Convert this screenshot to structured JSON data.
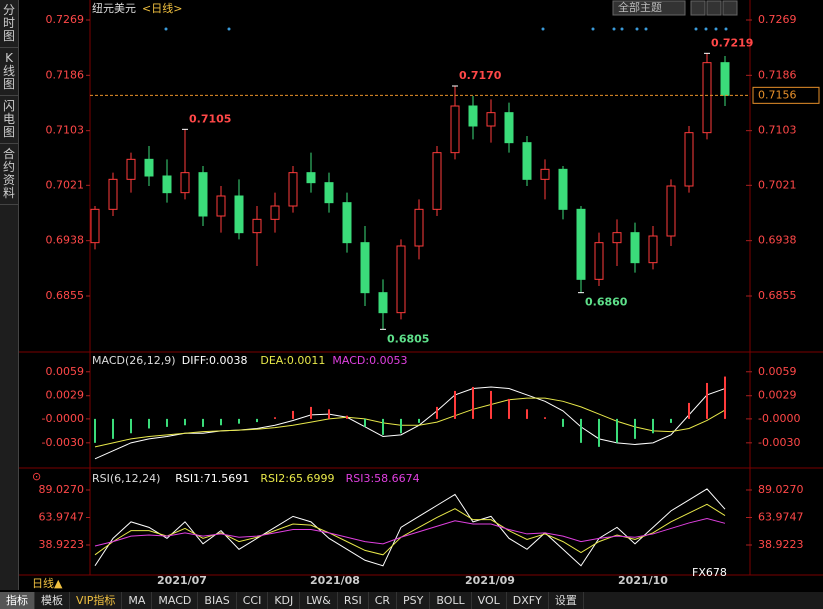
{
  "sidebar": [
    "分时图",
    "K线图",
    "闪电图",
    "合约资料"
  ],
  "header": {
    "symbol": "纽元美元",
    "period": "<日线>",
    "theme": "全部主题"
  },
  "chart_data": [
    {
      "type": "candlestick",
      "ylim": [
        0.6774,
        0.7287
      ],
      "yticks": [
        0.7269,
        0.7186,
        0.7103,
        0.7021,
        0.6938,
        0.6855
      ],
      "up_color": "#ff3b3b",
      "down_color": "#3bdc7a",
      "open": [
        0.6935,
        0.6985,
        0.703,
        0.706,
        0.7035,
        0.701,
        0.704,
        0.6975,
        0.7005,
        0.695,
        0.697,
        0.699,
        0.704,
        0.7025,
        0.6995,
        0.6935,
        0.686,
        0.683,
        0.693,
        0.6985,
        0.707,
        0.714,
        0.711,
        0.713,
        0.7085,
        0.703,
        0.7045,
        0.6985,
        0.688,
        0.6935,
        0.695,
        0.6905,
        0.6945,
        0.702,
        0.71,
        0.7205
      ],
      "high": [
        0.699,
        0.704,
        0.707,
        0.708,
        0.706,
        0.7105,
        0.705,
        0.702,
        0.703,
        0.699,
        0.701,
        0.705,
        0.707,
        0.704,
        0.701,
        0.696,
        0.688,
        0.694,
        0.7,
        0.708,
        0.717,
        0.7155,
        0.715,
        0.7145,
        0.7095,
        0.706,
        0.705,
        0.699,
        0.695,
        0.697,
        0.6965,
        0.696,
        0.703,
        0.711,
        0.7219,
        0.7215
      ],
      "low": [
        0.6925,
        0.6975,
        0.701,
        0.702,
        0.6995,
        0.7,
        0.696,
        0.695,
        0.694,
        0.69,
        0.695,
        0.698,
        0.701,
        0.698,
        0.692,
        0.684,
        0.6805,
        0.682,
        0.691,
        0.6975,
        0.706,
        0.709,
        0.7085,
        0.707,
        0.702,
        0.7,
        0.697,
        0.686,
        0.687,
        0.69,
        0.689,
        0.6895,
        0.693,
        0.701,
        0.709,
        0.714
      ],
      "close": [
        0.6985,
        0.703,
        0.706,
        0.7035,
        0.701,
        0.704,
        0.6975,
        0.7005,
        0.695,
        0.697,
        0.699,
        0.704,
        0.7025,
        0.6995,
        0.6935,
        0.686,
        0.683,
        0.693,
        0.6985,
        0.707,
        0.714,
        0.711,
        0.713,
        0.7085,
        0.703,
        0.7045,
        0.6985,
        0.688,
        0.6935,
        0.695,
        0.6905,
        0.6945,
        0.702,
        0.71,
        0.7205,
        0.7156
      ],
      "annotations": [
        {
          "value": 0.7105,
          "label": "0.7105"
        },
        {
          "value": 0.717,
          "label": "0.7170"
        },
        {
          "value": 0.7219,
          "label": "0.7219"
        },
        {
          "value": 0.6805,
          "label": "0.6805"
        },
        {
          "value": 0.686,
          "label": "0.6860"
        }
      ],
      "last_price": 0.7156,
      "xlabels": [
        "2021/07",
        "2021/08",
        "2021/09",
        "2021/10"
      ]
    },
    {
      "type": "macd",
      "title": "MACD(26,12,9)",
      "ylim": [
        -0.0059,
        0.008
      ],
      "yticks": [
        0.0059,
        0.0029,
        {
          "value": 0,
          "label": "-0.0000"
        },
        {
          "value": -0.003,
          "label": "-0.0030"
        }
      ],
      "series": [
        {
          "name": "DIFF:0.0038",
          "color": "#ffffff",
          "values": [
            -0.005,
            -0.004,
            -0.003,
            -0.0025,
            -0.0022,
            -0.0018,
            -0.0018,
            -0.0015,
            -0.0014,
            -0.0012,
            -0.0008,
            -0.0002,
            0.0005,
            0.0006,
            0.0002,
            -0.001,
            -0.0022,
            -0.002,
            -0.0008,
            0.001,
            0.003,
            0.0038,
            0.004,
            0.0038,
            0.003,
            0.0022,
            0.001,
            -0.001,
            -0.0025,
            -0.003,
            -0.0032,
            -0.003,
            -0.002,
            0.0005,
            0.003,
            0.0038
          ]
        },
        {
          "name": "DEA:0.0011",
          "color": "#e8e84a",
          "values": [
            -0.0035,
            -0.003,
            -0.0025,
            -0.0022,
            -0.002,
            -0.0018,
            -0.0016,
            -0.0015,
            -0.0014,
            -0.0013,
            -0.0011,
            -0.0008,
            -0.0004,
            0.0,
            0.0002,
            0.0,
            -0.0005,
            -0.0008,
            -0.0008,
            -0.0004,
            0.0004,
            0.0012,
            0.0018,
            0.0024,
            0.0026,
            0.0026,
            0.0022,
            0.0015,
            0.0006,
            -0.0003,
            -0.001,
            -0.0015,
            -0.0016,
            -0.0012,
            -0.0002,
            0.0011
          ]
        },
        {
          "name": "MACD:0.0053",
          "color": "#e040e0",
          "bar": true,
          "values": [
            -0.003,
            -0.0025,
            -0.0018,
            -0.0012,
            -0.001,
            -0.0008,
            -0.001,
            -0.0008,
            -0.0006,
            -0.0004,
            0.0002,
            0.001,
            0.0015,
            0.0012,
            0.0004,
            -0.001,
            -0.002,
            -0.0018,
            -0.0005,
            0.0015,
            0.0035,
            0.004,
            0.0035,
            0.0025,
            0.0012,
            0.0002,
            -0.001,
            -0.003,
            -0.0035,
            -0.003,
            -0.0025,
            -0.0018,
            -0.0005,
            0.002,
            0.0045,
            0.0053
          ]
        }
      ]
    },
    {
      "type": "line",
      "title": "RSI(6,12,24)",
      "ylim": [
        11.6,
        105.4
      ],
      "yticks": [
        {
          "value": 89.027,
          "label": "89.0270"
        },
        {
          "value": 63.9747,
          "label": "63.9747"
        },
        {
          "value": 38.9223,
          "label": "38.9223"
        }
      ],
      "series": [
        {
          "name": "RSI1:71.5691",
          "color": "#ffffff",
          "values": [
            20,
            45,
            60,
            55,
            45,
            60,
            40,
            52,
            35,
            45,
            55,
            65,
            60,
            45,
            35,
            25,
            20,
            55,
            65,
            75,
            85,
            60,
            65,
            45,
            35,
            50,
            35,
            20,
            45,
            55,
            40,
            55,
            70,
            80,
            90,
            71.5691
          ]
        },
        {
          "name": "RSI2:65.6999",
          "color": "#e8e84a",
          "values": [
            30,
            42,
            52,
            52,
            47,
            54,
            45,
            50,
            42,
            46,
            52,
            58,
            57,
            50,
            42,
            34,
            30,
            46,
            55,
            64,
            72,
            62,
            62,
            52,
            44,
            49,
            42,
            32,
            42,
            48,
            44,
            50,
            60,
            68,
            76,
            65.6999
          ]
        },
        {
          "name": "RSI3:58.6674",
          "color": "#e040e0",
          "values": [
            38,
            42,
            47,
            48,
            47,
            50,
            47,
            49,
            46,
            47,
            50,
            53,
            53,
            50,
            46,
            42,
            40,
            46,
            51,
            56,
            61,
            58,
            58,
            53,
            49,
            50,
            47,
            42,
            45,
            47,
            46,
            49,
            54,
            59,
            63,
            58.6674
          ]
        }
      ]
    }
  ],
  "footer": {
    "period": "日线▲",
    "tabs": [
      "指标",
      "模板",
      "VIP指标",
      "MA",
      "MACD",
      "BIAS",
      "CCI",
      "KDJ",
      "LW&",
      "RSI",
      "CR",
      "PSY",
      "BOLL",
      "VOL",
      "DXFY",
      "设置"
    ]
  },
  "watermark": "FX678"
}
